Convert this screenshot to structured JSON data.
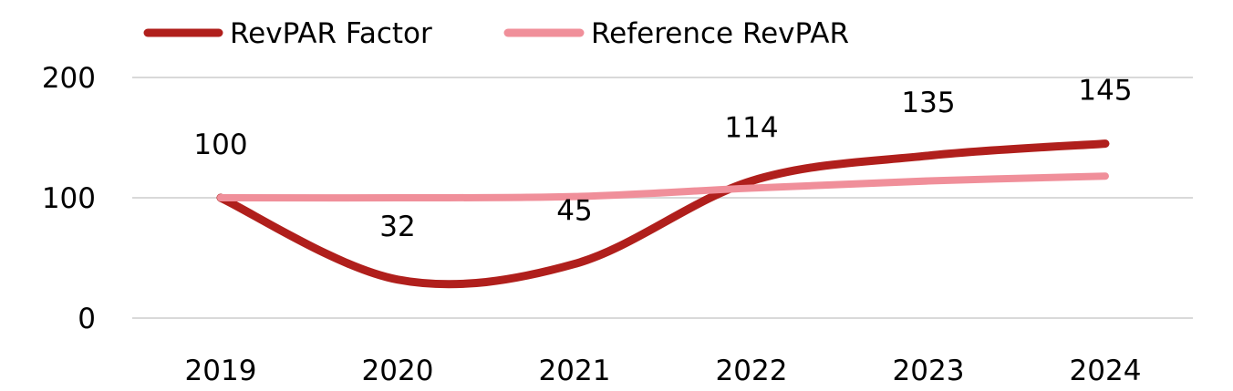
{
  "chart_data": {
    "type": "line",
    "title": "",
    "xlabel": "",
    "ylabel": "",
    "categories": [
      "2019",
      "2020",
      "2021",
      "2022",
      "2023",
      "2024"
    ],
    "ylim": [
      0,
      200
    ],
    "yticks": [
      0,
      100,
      200
    ],
    "grid": true,
    "smooth": true,
    "legend_position": "top-left",
    "series": [
      {
        "name": "RevPAR Factor",
        "values": [
          100,
          32,
          45,
          114,
          135,
          145
        ],
        "color": "#b01f1c",
        "data_labels": [
          "100",
          "32",
          "45",
          "114",
          "135",
          "145"
        ]
      },
      {
        "name": "Reference RevPAR",
        "values": [
          100,
          100,
          101,
          108,
          114,
          118
        ],
        "color": "#f08f9a"
      }
    ]
  }
}
